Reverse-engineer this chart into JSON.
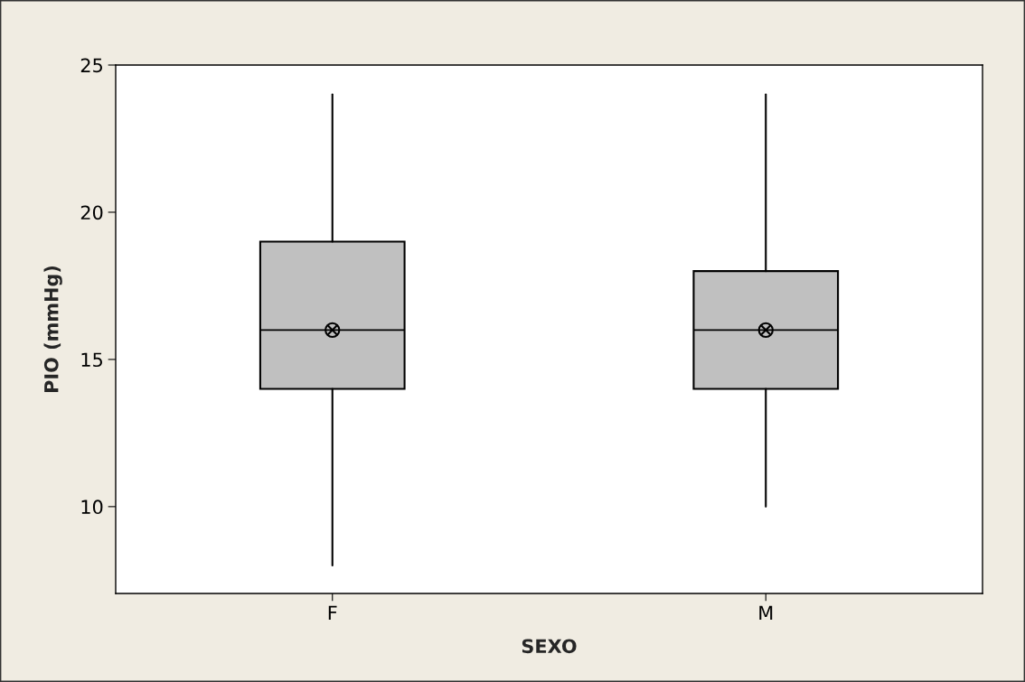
{
  "chart_data": {
    "type": "box",
    "xlabel": "SEXO",
    "ylabel": "PIO (mmHg)",
    "categories": [
      "F",
      "M"
    ],
    "boxes": [
      {
        "low": 8,
        "q1": 14,
        "median": 16,
        "q3": 19,
        "high": 24,
        "mean": 16
      },
      {
        "low": 10,
        "q1": 14,
        "median": 16,
        "q3": 18,
        "high": 24,
        "mean": 16
      }
    ],
    "color": "#c0c0c0",
    "ylim": [
      7.05,
      25
    ],
    "yticks": [
      10,
      15,
      20,
      25
    ],
    "grid": false
  }
}
